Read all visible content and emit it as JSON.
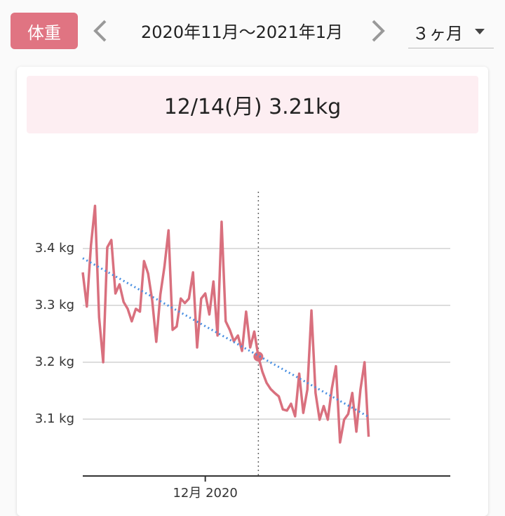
{
  "header": {
    "tab": "体重",
    "period": "2020年11月〜2021年1月",
    "range": "３ヶ月"
  },
  "summary": "12/14(月) 3.21kg",
  "chart_data": {
    "type": "line",
    "x": [
      -30,
      -29,
      -28,
      -27,
      -26,
      -25,
      -24,
      -23,
      -22,
      -21,
      -20,
      -19,
      -18,
      -17,
      -16,
      -15,
      -14,
      -13,
      -12,
      -11,
      -10,
      -9,
      -8,
      -7,
      -6,
      -5,
      -4,
      -3,
      -2,
      -1,
      0,
      1,
      2,
      3,
      4,
      5,
      6,
      7,
      8,
      9,
      10,
      11,
      12,
      13,
      14,
      15,
      16,
      17,
      18,
      19,
      20,
      21,
      22,
      23,
      24,
      25,
      26,
      27,
      28,
      29,
      30,
      31,
      32,
      33,
      34,
      35,
      36,
      37,
      38,
      39,
      40
    ],
    "series": [
      {
        "color": "#d9707e",
        "values": [
          3.358,
          3.298,
          3.405,
          3.475,
          3.279,
          3.2,
          3.402,
          3.415,
          3.321,
          3.337,
          3.306,
          3.294,
          3.272,
          3.294,
          3.289,
          3.378,
          3.356,
          3.309,
          3.236,
          3.319,
          3.368,
          3.432,
          3.257,
          3.263,
          3.312,
          3.304,
          3.312,
          3.358,
          3.226,
          3.312,
          3.321,
          3.284,
          3.342,
          3.247,
          3.447,
          3.272,
          3.257,
          3.237,
          3.247,
          3.22,
          3.289,
          3.226,
          3.254,
          3.21,
          3.183,
          3.164,
          3.153,
          3.146,
          3.14,
          3.117,
          3.115,
          3.127,
          3.105,
          3.18,
          3.111,
          3.152,
          3.291,
          3.146,
          3.099,
          3.123,
          3.099,
          3.154,
          3.193,
          3.059,
          3.099,
          3.109,
          3.146,
          3.078,
          3.152,
          3.2,
          3.069
        ]
      }
    ],
    "trend": {
      "color": "#4a90e2",
      "x": [
        -30,
        40
      ],
      "values": [
        3.383,
        3.104
      ]
    },
    "highlight_x": 13,
    "xlim": [
      -30,
      60
    ],
    "xticks": [
      {
        "value": 0,
        "label": "12月 2020"
      }
    ],
    "ylim": [
      3.0,
      3.5
    ],
    "yticks": [
      {
        "value": 3.1,
        "label": "3.1 kg"
      },
      {
        "value": 3.2,
        "label": "3.2 kg"
      },
      {
        "value": 3.3,
        "label": "3.3 kg"
      },
      {
        "value": 3.4,
        "label": "3.4 kg"
      }
    ],
    "grid": true
  }
}
